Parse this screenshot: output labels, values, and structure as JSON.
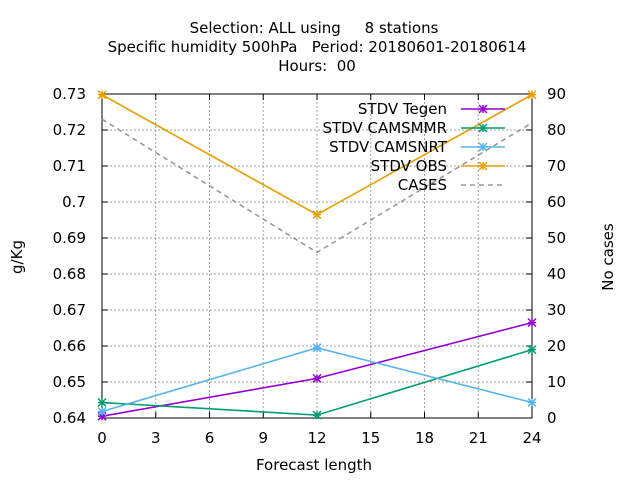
{
  "chart_data": {
    "type": "line",
    "title_lines": [
      "Selection: ALL using     8 stations",
      "Specific humidity 500hPa   Period: 20180601-20180614",
      "Hours:  00"
    ],
    "xlabel": "Forecast length",
    "ylabel": "g/Kg",
    "y2label": "No cases",
    "xlim": [
      0,
      24
    ],
    "ylim": [
      0.64,
      0.73
    ],
    "y2lim": [
      0,
      90
    ],
    "xticks": [
      "0",
      "3",
      "6",
      "9",
      "12",
      "15",
      "18",
      "21",
      "24"
    ],
    "yticks": [
      "0.64",
      "0.65",
      "0.66",
      "0.67",
      "0.68",
      "0.69",
      "0.7",
      "0.71",
      "0.72",
      "0.73"
    ],
    "y2ticks": [
      "0",
      "10",
      "20",
      "30",
      "40",
      "50",
      "60",
      "70",
      "80",
      "90"
    ],
    "grid": true,
    "legend_position": "top-right",
    "series": [
      {
        "name": "STDV Tegen",
        "color": "#9400d3",
        "marker": "cross-star",
        "axis": "y1",
        "x": [
          0,
          12,
          24
        ],
        "y": [
          0.6405,
          0.651,
          0.6665
        ]
      },
      {
        "name": "STDV CAMSMMR",
        "color": "#009e73",
        "marker": "cross-star",
        "axis": "y1",
        "x": [
          0,
          12,
          24
        ],
        "y": [
          0.6443,
          0.6408,
          0.659
        ]
      },
      {
        "name": "STDV CAMSNRT",
        "color": "#56b4e9",
        "marker": "cross-star",
        "axis": "y1",
        "x": [
          0,
          12,
          24
        ],
        "y": [
          0.6418,
          0.6595,
          0.6443
        ]
      },
      {
        "name": "STDV OBS",
        "color": "#e69f00",
        "marker": "cross-star",
        "axis": "y1",
        "x": [
          0,
          12,
          24
        ],
        "y": [
          0.7298,
          0.6965,
          0.7298
        ]
      },
      {
        "name": "CASES",
        "color": "#999999",
        "marker": "none",
        "dashed": true,
        "axis": "y2",
        "x": [
          0,
          12,
          24
        ],
        "y": [
          83,
          46,
          82
        ]
      }
    ]
  }
}
